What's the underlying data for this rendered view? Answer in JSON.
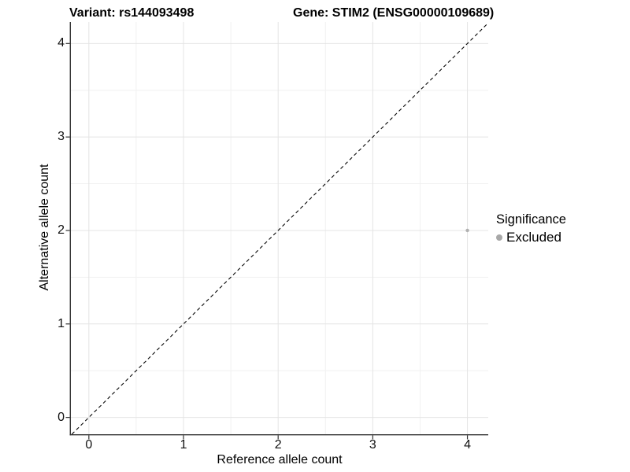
{
  "title": {
    "left": "Variant: rs144093498",
    "right": "Gene: STIM2 (ENSG00000109689)"
  },
  "chart_data": {
    "type": "scatter",
    "title": "Variant: rs144093498  /  Gene: STIM2 (ENSG00000109689)",
    "xlabel": "Reference allele count",
    "ylabel": "Alternative allele count",
    "x_ticks": [
      0,
      1,
      2,
      3,
      4
    ],
    "y_ticks": [
      0,
      1,
      2,
      3,
      4
    ],
    "xlim": [
      -0.19,
      4.22
    ],
    "ylim": [
      -0.18,
      4.23
    ],
    "grid": "major+minor",
    "points": [
      {
        "x": 4,
        "y": 2,
        "series": "Excluded"
      }
    ],
    "reference_line": {
      "type": "identity y=x",
      "style": "dashed",
      "color": "#000000"
    },
    "legend": {
      "title": "Significance",
      "position": "right",
      "items": [
        {
          "label": "Excluded",
          "color": "#a8a8a8"
        }
      ]
    },
    "colors": {
      "point": "#b0b0b0",
      "grid_major": "#e4e4e4",
      "grid_minor": "#f1f1f1",
      "axis": "#343434",
      "tick_text": "#111111"
    }
  }
}
